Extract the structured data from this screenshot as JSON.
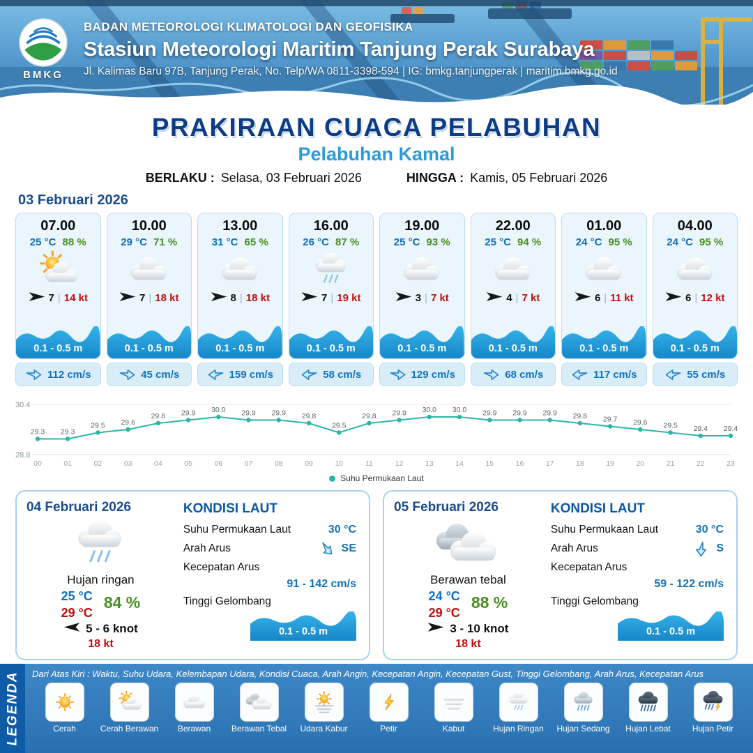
{
  "header": {
    "org": "BADAN METEOROLOGI KLIMATOLOGI DAN GEOFISIKA",
    "station": "Stasiun Meteorologi Maritim Tanjung Perak Surabaya",
    "address": "Jl. Kalimas Baru 97B, Tanjung Perak, No. Telp/WA 0811-3398-594 | IG: bmkg.tanjungperak | maritim.bmkg.go.id",
    "logo_text": "BMKG"
  },
  "title": {
    "main": "PRAKIRAAN CUACA PELABUHAN",
    "subtitle": "Pelabuhan Kamal",
    "valid_label": "BERLAKU :",
    "valid_value": "Selasa, 03 Februari 2026",
    "until_label": "HINGGA :",
    "until_value": "Kamis, 05 Februari 2026"
  },
  "forecast": {
    "date": "03 Februari 2026",
    "cards": [
      {
        "time": "07.00",
        "temp": "25 °C",
        "humidity": "88 %",
        "icon": "cerah-berawan",
        "wind_speed": "7",
        "gust": "14 kt",
        "wave": "0.1 - 0.5 m",
        "current_dir": "right",
        "current_speed": "112 cm/s"
      },
      {
        "time": "10.00",
        "temp": "29 °C",
        "humidity": "71 %",
        "icon": "berawan",
        "wind_speed": "7",
        "gust": "18 kt",
        "wave": "0.1 - 0.5 m",
        "current_dir": "right",
        "current_speed": "45 cm/s"
      },
      {
        "time": "13.00",
        "temp": "31 °C",
        "humidity": "65 %",
        "icon": "berawan",
        "wind_speed": "8",
        "gust": "18 kt",
        "wave": "0.1 - 0.5 m",
        "current_dir": "left",
        "current_speed": "159 cm/s"
      },
      {
        "time": "16.00",
        "temp": "26 °C",
        "humidity": "87 %",
        "icon": "hujan-ringan",
        "wind_speed": "7",
        "gust": "19 kt",
        "wave": "0.1 - 0.5 m",
        "current_dir": "left",
        "current_speed": "58 cm/s"
      },
      {
        "time": "19.00",
        "temp": "25 °C",
        "humidity": "93 %",
        "icon": "berawan",
        "wind_speed": "3",
        "gust": "7 kt",
        "wave": "0.1 - 0.5 m",
        "current_dir": "right",
        "current_speed": "129 cm/s"
      },
      {
        "time": "22.00",
        "temp": "25 °C",
        "humidity": "94 %",
        "icon": "berawan",
        "wind_speed": "4",
        "gust": "7 kt",
        "wave": "0.1 - 0.5 m",
        "current_dir": "right",
        "current_speed": "68 cm/s"
      },
      {
        "time": "01.00",
        "temp": "24 °C",
        "humidity": "95 %",
        "icon": "berawan",
        "wind_speed": "6",
        "gust": "11 kt",
        "wave": "0.1 - 0.5 m",
        "current_dir": "left",
        "current_speed": "117 cm/s"
      },
      {
        "time": "04.00",
        "temp": "24 °C",
        "humidity": "95 %",
        "icon": "berawan",
        "wind_speed": "6",
        "gust": "12 kt",
        "wave": "0.1 - 0.5 m",
        "current_dir": "left",
        "current_speed": "55 cm/s"
      }
    ]
  },
  "chart_data": {
    "type": "line",
    "title": "",
    "xlabel": "",
    "ylabel": "",
    "series_label": "Suhu Permukaan Laut",
    "ylim": [
      28.8,
      30.4
    ],
    "x": [
      "00",
      "01",
      "02",
      "03",
      "04",
      "05",
      "06",
      "07",
      "08",
      "09",
      "10",
      "11",
      "12",
      "13",
      "14",
      "15",
      "16",
      "17",
      "18",
      "19",
      "20",
      "21",
      "22",
      "23"
    ],
    "values": [
      29.3,
      29.3,
      29.5,
      29.6,
      29.8,
      29.9,
      30.0,
      29.9,
      29.9,
      29.8,
      29.5,
      29.8,
      29.9,
      30.0,
      30.0,
      29.9,
      29.9,
      29.9,
      29.8,
      29.7,
      29.6,
      29.5,
      29.4,
      29.4
    ]
  },
  "daily": [
    {
      "date": "04 Februari 2026",
      "icon": "hujan-ringan",
      "condition": "Hujan ringan",
      "temp_min": "25 °C",
      "humidity": "84 %",
      "temp_max": "29 °C",
      "wind_dir": "left",
      "wind": "5 - 6 knot",
      "gust": "18 kt",
      "sea": {
        "title": "KONDISI LAUT",
        "sst_label": "Suhu Permukaan Laut",
        "sst_value": "30 °C",
        "current_dir_label": "Arah Arus",
        "current_dir_value": "SE",
        "current_dir_rot": "se",
        "current_speed_label": "Kecepatan Arus",
        "current_speed_value": "91 - 142 cm/s",
        "wave_label": "Tinggi Gelombang",
        "wave_value": "0.1 - 0.5 m"
      }
    },
    {
      "date": "05 Februari 2026",
      "icon": "berawan-tebal",
      "condition": "Berawan tebal",
      "temp_min": "24 °C",
      "humidity": "88 %",
      "temp_max": "29 °C",
      "wind_dir": "right",
      "wind": "3 - 10 knot",
      "gust": "18 kt",
      "sea": {
        "title": "KONDISI LAUT",
        "sst_label": "Suhu Permukaan Laut",
        "sst_value": "30 °C",
        "current_dir_label": "Arah Arus",
        "current_dir_value": "S",
        "current_dir_rot": "s",
        "current_speed_label": "Kecepatan Arus",
        "current_speed_value": "59 - 122 cm/s",
        "wave_label": "Tinggi Gelombang",
        "wave_value": "0.1 - 0.5 m"
      }
    }
  ],
  "legend": {
    "title": "LEGENDA",
    "note": "Dari Atas Kiri : Waktu, Suhu Udara, Kelembapan Udara, Kondisi Cuaca, Arah Angin, Kecepatan Angin, Kecepatan Gust, Tinggi Gelombang, Arah Arus, Kecepatan Arus",
    "items": [
      {
        "label": "Cerah",
        "icon": "cerah"
      },
      {
        "label": "Cerah Berawan",
        "icon": "cerah-berawan"
      },
      {
        "label": "Berawan",
        "icon": "berawan"
      },
      {
        "label": "Berawan Tebal",
        "icon": "berawan-tebal"
      },
      {
        "label": "Udara Kabur",
        "icon": "udara-kabur"
      },
      {
        "label": "Petir",
        "icon": "petir"
      },
      {
        "label": "Kabut",
        "icon": "kabut"
      },
      {
        "label": "Hujan Ringan",
        "icon": "hujan-ringan"
      },
      {
        "label": "Hujan Sedang",
        "icon": "hujan-sedang"
      },
      {
        "label": "Hujan Lebat",
        "icon": "hujan-lebat"
      },
      {
        "label": "Hujan Petir",
        "icon": "hujan-petir"
      }
    ]
  },
  "colors": {
    "accent_navy": "#0d3c85",
    "accent_blue": "#2d9ad8",
    "temp_blue": "#0a6fc2",
    "humidity_green": "#4a8f1e",
    "gust_red": "#c00d0d",
    "wave_blue": "#29abe2",
    "chart_teal": "#2bb5a8"
  }
}
